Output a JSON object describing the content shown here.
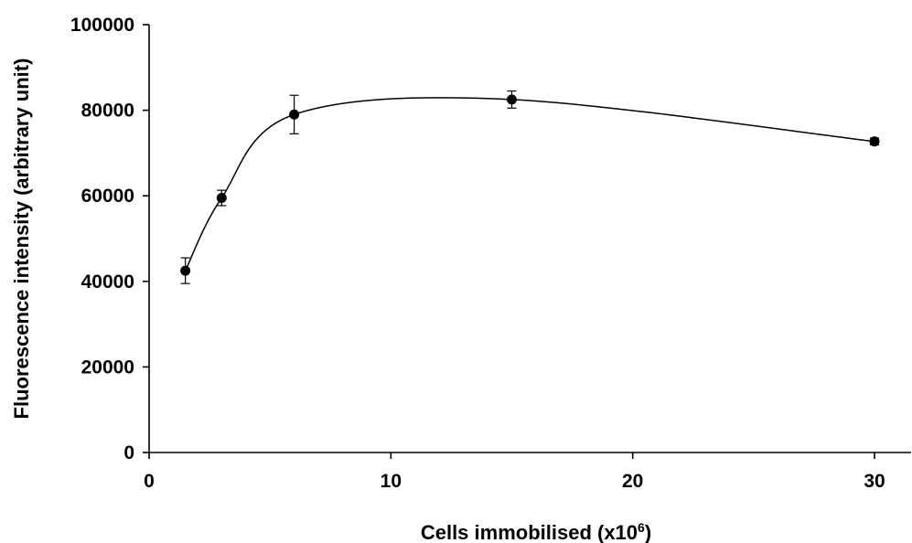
{
  "chart_data": {
    "type": "scatter",
    "title": "",
    "xlabel": "Cells immobilised (x10",
    "xlabel_sup": "6",
    "xlabel_close": ")",
    "ylabel": "Fluorescence intensity (arbitrary unit)",
    "xlim": [
      0,
      32
    ],
    "ylim": [
      0,
      100000
    ],
    "x_ticks": [
      0,
      10,
      20,
      30
    ],
    "y_ticks": [
      0,
      20000,
      40000,
      60000,
      80000,
      100000
    ],
    "x_tick_labels": [
      "0",
      "10",
      "20",
      "30"
    ],
    "y_tick_labels": [
      "0",
      "20000",
      "40000",
      "60000",
      "80000",
      "100000"
    ],
    "grid": false,
    "legend": "none",
    "trendline": "smooth",
    "series": [
      {
        "x": [
          1.5,
          3,
          6,
          15,
          30
        ],
        "y": [
          42500,
          59500,
          79000,
          82500,
          72700
        ],
        "error": [
          3000,
          1800,
          4500,
          2000,
          800
        ]
      }
    ]
  }
}
